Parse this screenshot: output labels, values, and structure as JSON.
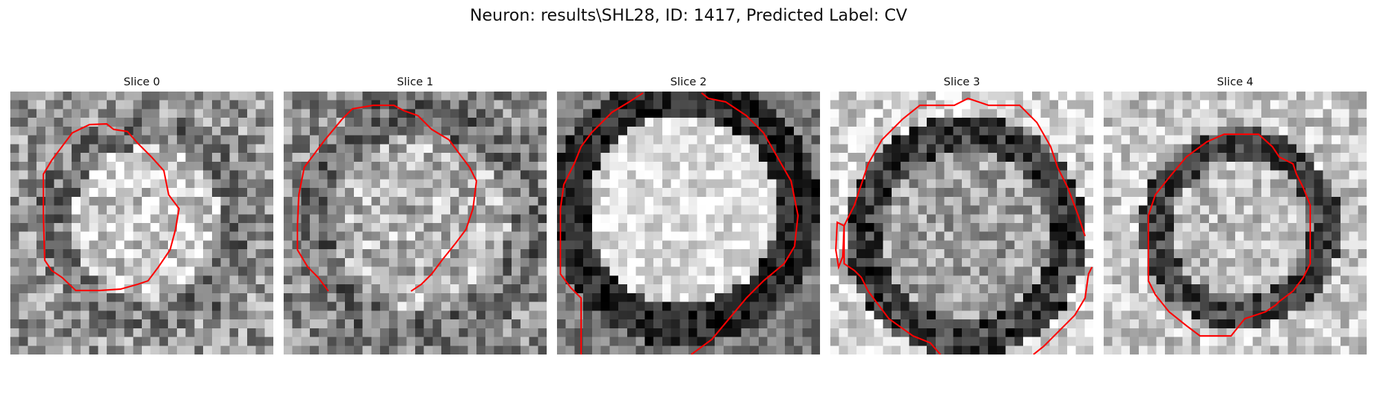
{
  "figure": {
    "title": "Neuron: results\\SHL28, ID: 1417, Predicted Label: CV"
  },
  "panels": [
    {
      "title": "Slice 0"
    },
    {
      "title": "Slice 1"
    },
    {
      "title": "Slice 2"
    },
    {
      "title": "Slice 3"
    },
    {
      "title": "Slice 4"
    }
  ],
  "colors": {
    "contour": "#ff0000",
    "background": "#ffffff"
  }
}
